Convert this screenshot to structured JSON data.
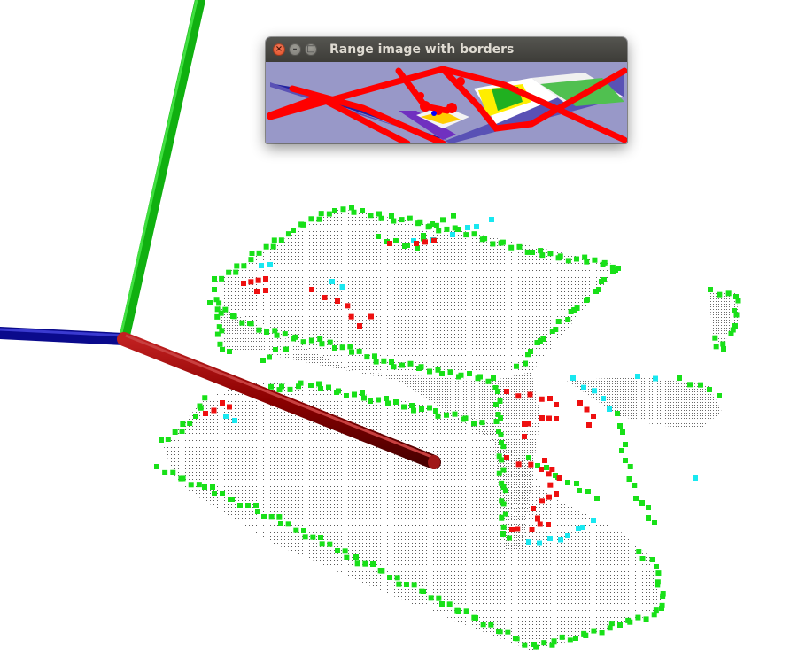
{
  "window": {
    "title": "Range image with borders",
    "buttons": {
      "close": "×",
      "minimize": "–",
      "maximize": "□"
    }
  },
  "scene": {
    "description_colors": {
      "background": "#ffffff",
      "points": "#202020",
      "obstacle_border": "#ff0000",
      "veil_points": "#00f0ff",
      "shadow_border": "#00ee00",
      "axis_x": "#8b0000",
      "axis_y": "#00c800",
      "axis_z": "#000090"
    }
  },
  "range_image": {
    "background": "#9898c8"
  }
}
